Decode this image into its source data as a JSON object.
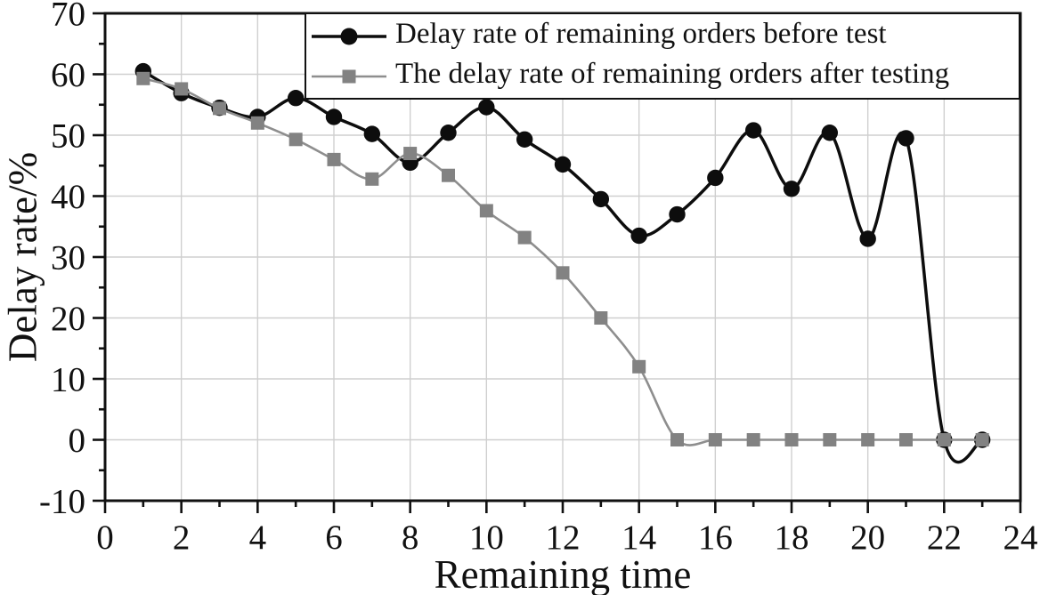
{
  "figure": {
    "background": "#ffffff",
    "axis_color": "#111111",
    "grid_color": "#cfcfcf",
    "font_color": "#111111"
  },
  "chart_data": {
    "type": "line",
    "title": "",
    "xlabel": "Remaining time",
    "ylabel": "Delay rate/%",
    "xlim": [
      0,
      24
    ],
    "ylim": [
      -10,
      70
    ],
    "grid": "major",
    "legend_position": "top-right",
    "smoothing": "spline",
    "x_major_ticks": [
      0,
      2,
      4,
      6,
      8,
      10,
      12,
      14,
      16,
      18,
      20,
      22,
      24
    ],
    "x_minor_ticks": [
      1,
      3,
      5,
      7,
      9,
      11,
      13,
      15,
      17,
      19,
      21,
      23
    ],
    "y_major_ticks": [
      -10,
      0,
      10,
      20,
      30,
      40,
      50,
      60,
      70
    ],
    "y_minor_ticks": [
      -5,
      5,
      15,
      25,
      35,
      45,
      55,
      65
    ],
    "x": [
      1,
      2,
      3,
      4,
      5,
      6,
      7,
      8,
      9,
      10,
      11,
      12,
      13,
      14,
      15,
      16,
      17,
      18,
      19,
      20,
      21,
      22,
      23
    ],
    "series": [
      {
        "name": "Delay rate of remaining orders before test",
        "marker": "circle",
        "line_color": "#0d0d0d",
        "marker_color": "#0d0d0d",
        "line_width": 3.5,
        "values": [
          60.5,
          56.9,
          54.5,
          53,
          56.1,
          53,
          50.2,
          45.5,
          50.4,
          54.6,
          49.3,
          45.2,
          39.5,
          33.5,
          37,
          43,
          50.8,
          41.2,
          50.4,
          33,
          49.5,
          0,
          0
        ]
      },
      {
        "name": "The delay rate of remaining orders after testing",
        "marker": "square",
        "line_color": "#8e8e8e",
        "marker_color": "#828282",
        "line_width": 2.6,
        "values": [
          59.3,
          57.6,
          54.4,
          52,
          49.3,
          46,
          42.8,
          47,
          43.4,
          37.6,
          33.2,
          27.4,
          20,
          12,
          0,
          0,
          0,
          0,
          0,
          0,
          0,
          0,
          0
        ]
      }
    ]
  }
}
